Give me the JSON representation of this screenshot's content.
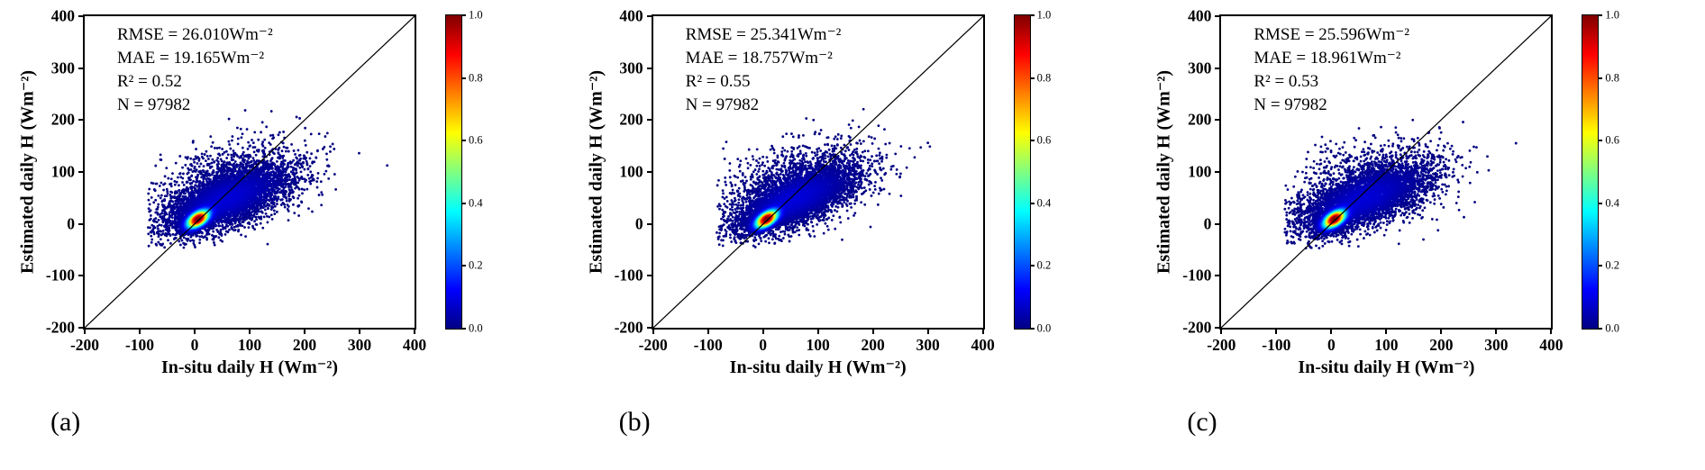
{
  "figure": {
    "background": "#ffffff",
    "n_panels": 3
  },
  "chart_data": [
    {
      "type": "scatter",
      "variant": "density-scatter",
      "panel_label": "(a)",
      "xlabel": "In-situ daily H (Wm⁻²)",
      "ylabel": "Estimated daily H (Wm⁻²)",
      "xlim": [
        -200,
        400
      ],
      "ylim": [
        -200,
        400
      ],
      "xticks": [
        "-200",
        "-100",
        "0",
        "100",
        "200",
        "300",
        "400"
      ],
      "yticks": [
        "-200",
        "-100",
        "0",
        "100",
        "200",
        "300",
        "400"
      ],
      "identity_line": true,
      "stats_lines": [
        "RMSE = 26.010Wm⁻²",
        "MAE = 19.165Wm⁻²",
        "R² = 0.52",
        "N = 97982"
      ],
      "stats": {
        "RMSE": 26.01,
        "MAE": 19.165,
        "R2": 0.52,
        "N": 97982,
        "units": "Wm⁻²"
      },
      "colorbar": {
        "colormap": "jet",
        "min": 0.0,
        "max": 1.0,
        "ticks": [
          "0.0",
          "0.2",
          "0.4",
          "0.6",
          "0.8",
          "1.0"
        ],
        "gradient": [
          {
            "pos": 0,
            "color": "#000083"
          },
          {
            "pos": 12.5,
            "color": "#0000ff"
          },
          {
            "pos": 37.5,
            "color": "#00ffff"
          },
          {
            "pos": 50,
            "color": "#80ff80"
          },
          {
            "pos": 62.5,
            "color": "#ffff00"
          },
          {
            "pos": 87.5,
            "color": "#ff0000"
          },
          {
            "pos": 100,
            "color": "#800000"
          }
        ]
      },
      "cloud": {
        "seed": 101,
        "n_points": 9000,
        "clip_x_min": -85,
        "clip_y_min": -48,
        "components": [
          {
            "weight": 0.4,
            "mean": [
              6,
              9
            ],
            "sigma": [
              12,
              10
            ],
            "rho": 0.55
          },
          {
            "weight": 0.45,
            "mean": [
              55,
              45
            ],
            "sigma": [
              58,
              33
            ],
            "rho": 0.66
          },
          {
            "weight": 0.15,
            "mean": [
              70,
              75
            ],
            "sigma": [
              70,
              42
            ],
            "rho": 0.35
          }
        ]
      }
    },
    {
      "type": "scatter",
      "variant": "density-scatter",
      "panel_label": "(b)",
      "xlabel": "In-situ daily H (Wm⁻²)",
      "ylabel": "Estimated daily H (Wm⁻²)",
      "xlim": [
        -200,
        400
      ],
      "ylim": [
        -200,
        400
      ],
      "xticks": [
        "-200",
        "-100",
        "0",
        "100",
        "200",
        "300",
        "400"
      ],
      "yticks": [
        "-200",
        "-100",
        "0",
        "100",
        "200",
        "300",
        "400"
      ],
      "identity_line": true,
      "stats_lines": [
        "RMSE = 25.341Wm⁻²",
        "MAE = 18.757Wm⁻²",
        "R² = 0.55",
        "N = 97982"
      ],
      "stats": {
        "RMSE": 25.341,
        "MAE": 18.757,
        "R2": 0.55,
        "N": 97982,
        "units": "Wm⁻²"
      },
      "colorbar": {
        "colormap": "jet",
        "min": 0.0,
        "max": 1.0,
        "ticks": [
          "0.0",
          "0.2",
          "0.4",
          "0.6",
          "0.8",
          "1.0"
        ],
        "gradient": [
          {
            "pos": 0,
            "color": "#000083"
          },
          {
            "pos": 12.5,
            "color": "#0000ff"
          },
          {
            "pos": 37.5,
            "color": "#00ffff"
          },
          {
            "pos": 50,
            "color": "#80ff80"
          },
          {
            "pos": 62.5,
            "color": "#ffff00"
          },
          {
            "pos": 87.5,
            "color": "#ff0000"
          },
          {
            "pos": 100,
            "color": "#800000"
          }
        ]
      },
      "cloud": {
        "seed": 202,
        "n_points": 9000,
        "clip_x_min": -85,
        "clip_y_min": -48,
        "components": [
          {
            "weight": 0.4,
            "mean": [
              6,
              9
            ],
            "sigma": [
              12,
              10
            ],
            "rho": 0.58
          },
          {
            "weight": 0.45,
            "mean": [
              55,
              46
            ],
            "sigma": [
              56,
              33
            ],
            "rho": 0.68
          },
          {
            "weight": 0.15,
            "mean": [
              70,
              78
            ],
            "sigma": [
              68,
              42
            ],
            "rho": 0.35
          }
        ]
      }
    },
    {
      "type": "scatter",
      "variant": "density-scatter",
      "panel_label": "(c)",
      "xlabel": "In-situ daily H (Wm⁻²)",
      "ylabel": "Estimated daily H (Wm⁻²)",
      "xlim": [
        -200,
        400
      ],
      "ylim": [
        -200,
        400
      ],
      "xticks": [
        "-200",
        "-100",
        "0",
        "100",
        "200",
        "300",
        "400"
      ],
      "yticks": [
        "-200",
        "-100",
        "0",
        "100",
        "200",
        "300",
        "400"
      ],
      "identity_line": true,
      "stats_lines": [
        "RMSE = 25.596Wm⁻²",
        "MAE = 18.961Wm⁻²",
        "R² = 0.53",
        "N = 97982"
      ],
      "stats": {
        "RMSE": 25.596,
        "MAE": 18.961,
        "R2": 0.53,
        "N": 97982,
        "units": "Wm⁻²"
      },
      "colorbar": {
        "colormap": "jet",
        "min": 0.0,
        "max": 1.0,
        "ticks": [
          "0.0",
          "0.2",
          "0.4",
          "0.6",
          "0.8",
          "1.0"
        ],
        "gradient": [
          {
            "pos": 0,
            "color": "#000083"
          },
          {
            "pos": 12.5,
            "color": "#0000ff"
          },
          {
            "pos": 37.5,
            "color": "#00ffff"
          },
          {
            "pos": 50,
            "color": "#80ff80"
          },
          {
            "pos": 62.5,
            "color": "#ffff00"
          },
          {
            "pos": 87.5,
            "color": "#ff0000"
          },
          {
            "pos": 100,
            "color": "#800000"
          }
        ]
      },
      "cloud": {
        "seed": 303,
        "n_points": 9000,
        "clip_x_min": -85,
        "clip_y_min": -48,
        "components": [
          {
            "weight": 0.4,
            "mean": [
              6,
              9
            ],
            "sigma": [
              12,
              10
            ],
            "rho": 0.55
          },
          {
            "weight": 0.45,
            "mean": [
              57,
              45
            ],
            "sigma": [
              58,
              33
            ],
            "rho": 0.66
          },
          {
            "weight": 0.15,
            "mean": [
              72,
              76
            ],
            "sigma": [
              70,
              42
            ],
            "rho": 0.35
          }
        ]
      }
    }
  ]
}
